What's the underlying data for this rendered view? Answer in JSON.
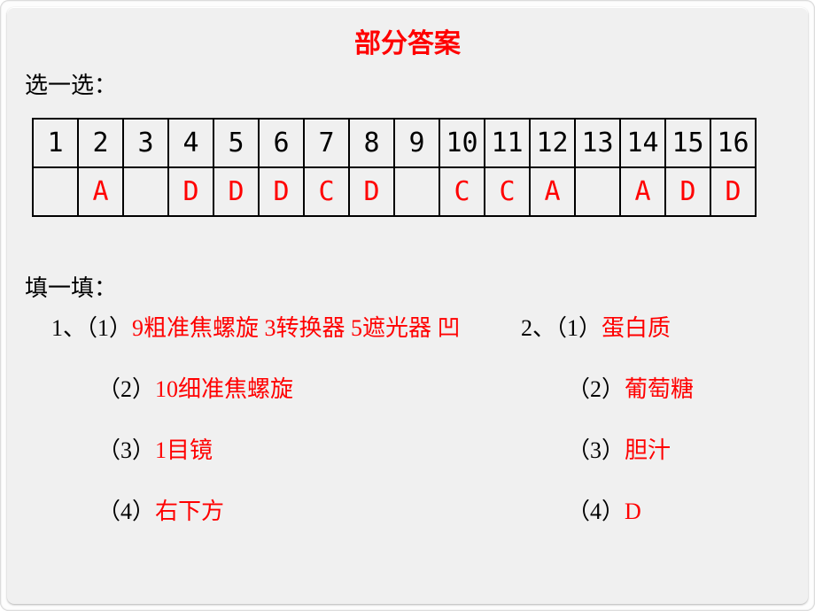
{
  "title": "部分答案",
  "section1_label": "选一选：",
  "section2_label": "填一填：",
  "table": {
    "nums": [
      "1",
      "2",
      "3",
      "4",
      "5",
      "6",
      "7",
      "8",
      "9",
      "10",
      "11",
      "12",
      "13",
      "14",
      "15",
      "16"
    ],
    "answers": [
      "",
      "A",
      "",
      "D",
      "D",
      "D",
      "C",
      "D",
      "",
      "C",
      "C",
      "A",
      "",
      "A",
      "D",
      "D"
    ]
  },
  "colors": {
    "answer_red": "#ff0000",
    "text_black": "#000000",
    "page_bg": "#f0f0f0"
  },
  "fill": {
    "q1": {
      "prefix": "1、",
      "items": [
        {
          "num": "（1）",
          "ans": "9粗准焦螺旋 3转换器 5遮光器 凹"
        },
        {
          "num": "（2）",
          "ans": "10细准焦螺旋"
        },
        {
          "num": "（3）",
          "ans": "1目镜"
        },
        {
          "num": "（4）",
          "ans": "右下方"
        }
      ]
    },
    "q2": {
      "prefix": "2、",
      "items": [
        {
          "num": "（1）",
          "ans": "蛋白质"
        },
        {
          "num": "（2）",
          "ans": "葡萄糖"
        },
        {
          "num": "（3）",
          "ans": "胆汁"
        },
        {
          "num": "（4）",
          "ans": "D"
        }
      ]
    }
  }
}
